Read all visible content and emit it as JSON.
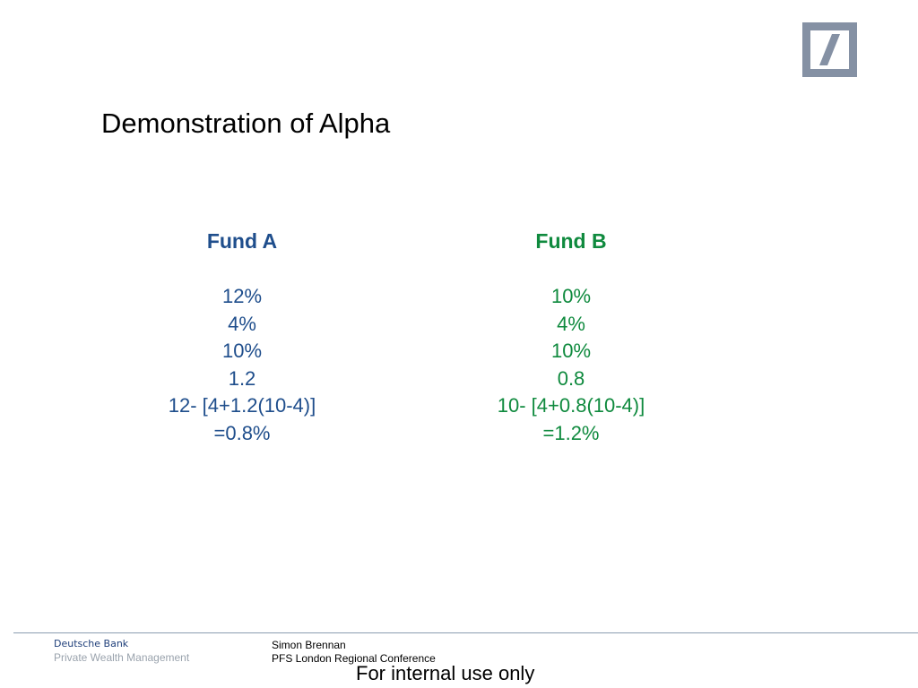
{
  "slide": {
    "title": "Demonstration of Alpha"
  },
  "logo": {
    "icon": "deutsche-bank-slash-logo",
    "frame_color": "#8591a4"
  },
  "funds": [
    {
      "heading": "Fund A",
      "color": "#1f4e8c",
      "lines": [
        "12%",
        "4%",
        "10%",
        "1.2",
        "12- [4+1.2(10-4)]",
        "=0.8%"
      ]
    },
    {
      "heading": "Fund B",
      "color": "#0f8a3e",
      "lines": [
        "10%",
        "4%",
        "10%",
        "0.8",
        "10- [4+0.8(10-4)]",
        "=1.2%"
      ]
    }
  ],
  "footer": {
    "brand_name": "Deutsche Bank",
    "brand_division": "Private Wealth Management",
    "presenter": "Simon Brennan",
    "event": "PFS London Regional Conference",
    "classification": "For internal use only"
  }
}
